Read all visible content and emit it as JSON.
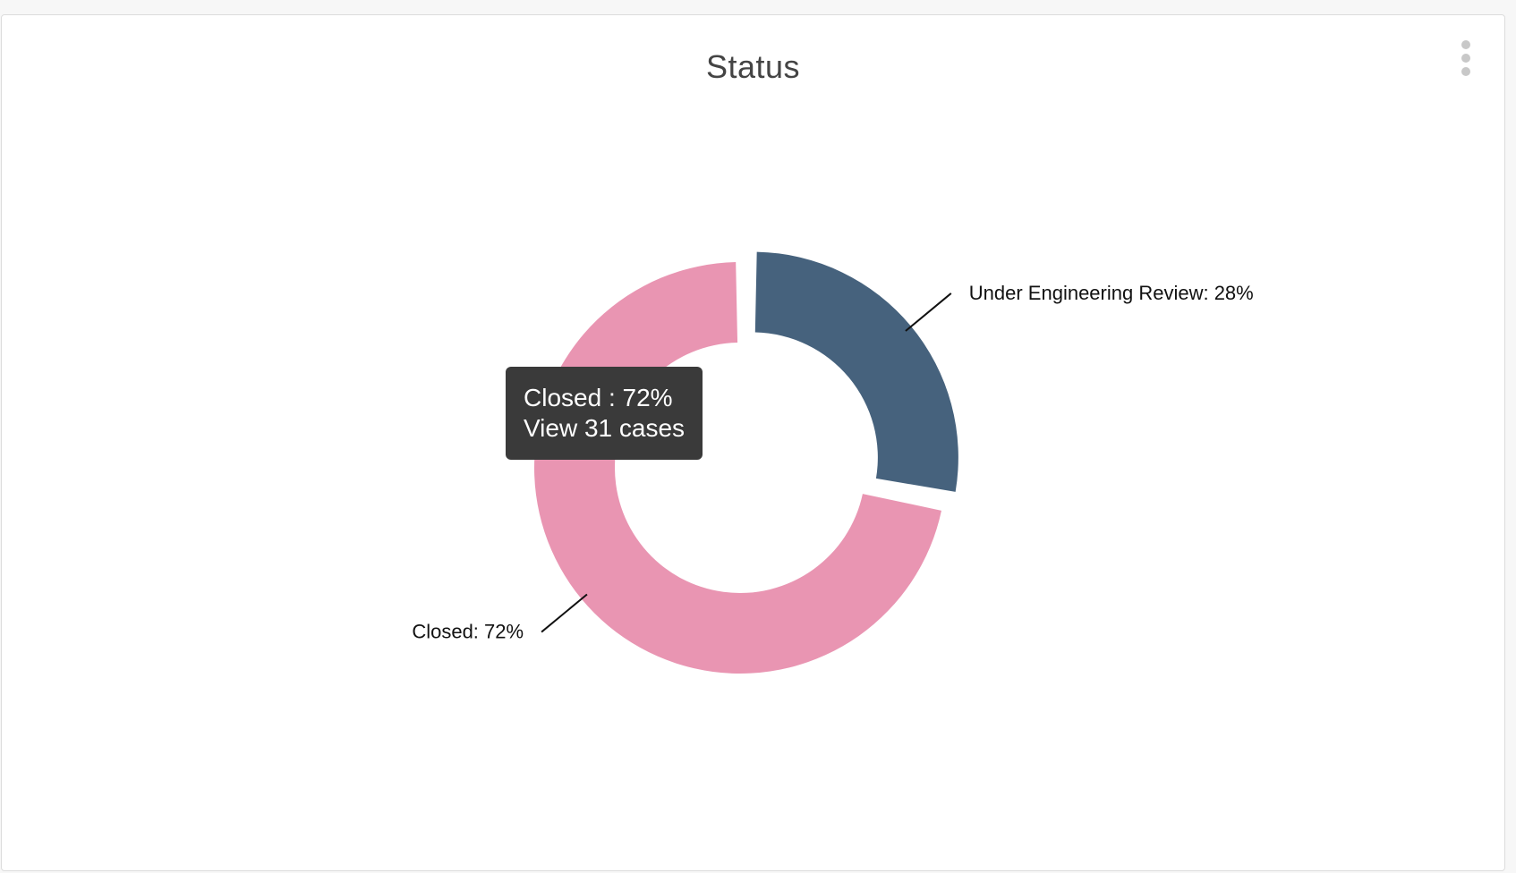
{
  "widget": {
    "title": "Status"
  },
  "tooltip": {
    "line1": "Closed : 72%",
    "line2": "View 31 cases"
  },
  "chart_data": {
    "type": "pie",
    "variant": "donut",
    "title": "Status",
    "exploded_slice": "Under Engineering Review",
    "slices": [
      {
        "name": "Under Engineering Review",
        "value": 28,
        "label": "Under Engineering Review: 28%",
        "color": "#46627d"
      },
      {
        "name": "Closed",
        "value": 72,
        "label": "Closed: 72%",
        "color": "#e995b2"
      }
    ]
  },
  "icons": {
    "menu": "more-vertical-icon"
  }
}
